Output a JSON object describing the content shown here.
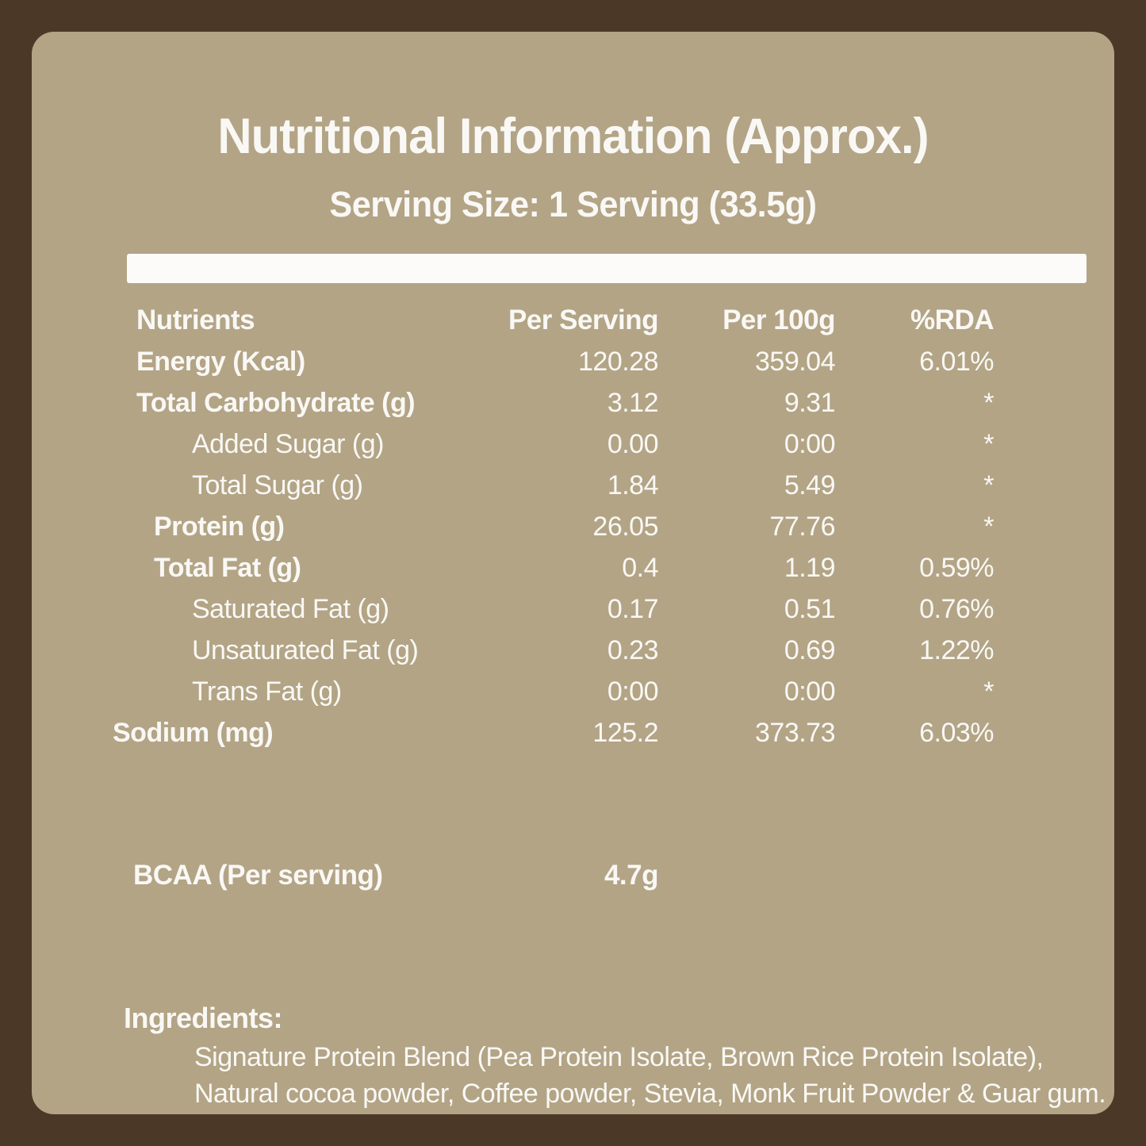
{
  "colors": {
    "frame_brown": "#4b3827",
    "panel_tan": "#b2a485",
    "divider_white": "#fcfbfa",
    "text": "#faf8f5"
  },
  "title": "Nutritional Information (Approx.)",
  "subtitle": "Serving Size: 1 Serving (33.5g)",
  "table": {
    "headers": [
      "Nutrients",
      "Per Serving",
      "Per 100g",
      "%RDA"
    ],
    "rows": [
      {
        "label": "Energy (Kcal)",
        "per_serving": "120.28",
        "per_100g": "359.04",
        "rda": "6.01%",
        "style": "bold"
      },
      {
        "label": "Total Carbohydrate (g)",
        "per_serving": "3.12",
        "per_100g": "9.31",
        "rda": "*",
        "style": "bold"
      },
      {
        "label": "Added Sugar (g)",
        "per_serving": "0.00",
        "per_100g": "0:00",
        "rda": "*",
        "style": "sub"
      },
      {
        "label": "Total Sugar (g)",
        "per_serving": "1.84",
        "per_100g": "5.49",
        "rda": "*",
        "style": "sub"
      },
      {
        "label": "Protein (g)",
        "per_serving": "26.05",
        "per_100g": "77.76",
        "rda": "*",
        "style": "bold-indent"
      },
      {
        "label": "Total Fat (g)",
        "per_serving": "0.4",
        "per_100g": "1.19",
        "rda": "0.59%",
        "style": "bold-indent"
      },
      {
        "label": "Saturated Fat (g)",
        "per_serving": "0.17",
        "per_100g": "0.51",
        "rda": "0.76%",
        "style": "sub"
      },
      {
        "label": "Unsaturated Fat (g)",
        "per_serving": "0.23",
        "per_100g": "0.69",
        "rda": "1.22%",
        "style": "sub"
      },
      {
        "label": "Trans Fat (g)",
        "per_serving": "0:00",
        "per_100g": "0:00",
        "rda": "*",
        "style": "sub"
      },
      {
        "label": "Sodium (mg)",
        "per_serving": "125.2",
        "per_100g": "373.73",
        "rda": "6.03%",
        "style": "bold-outdent"
      }
    ]
  },
  "bcaa": {
    "label": "BCAA (Per serving)",
    "value": "4.7g"
  },
  "ingredients": {
    "heading": "Ingredients:",
    "lines": [
      "Signature Protein Blend (Pea Protein Isolate, Brown Rice Protein Isolate),",
      "Natural cocoa powder, Coffee powder, Stevia, Monk Fruit Powder & Guar gum."
    ]
  }
}
